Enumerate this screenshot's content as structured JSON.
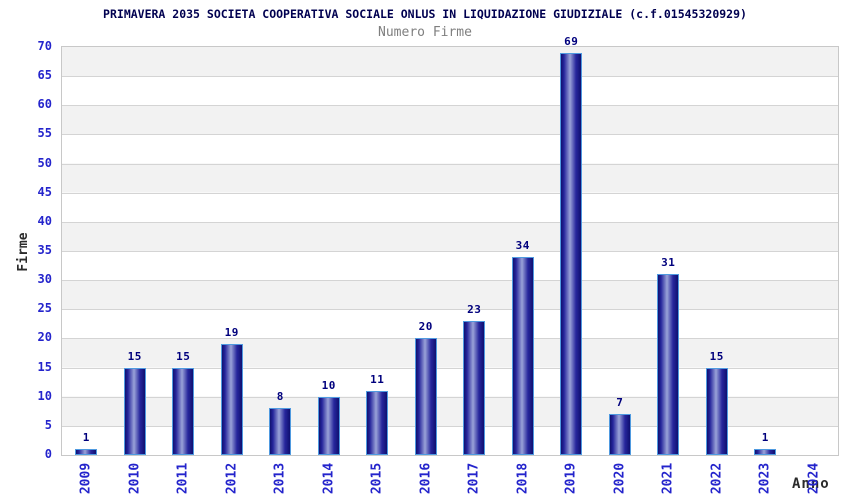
{
  "header": {
    "title": "PRIMAVERA 2035 SOCIETA COOPERATIVA SOCIALE ONLUS IN LIQUIDAZIONE GIUDIZIALE (c.f.01545320929)",
    "subtitle": "Numero Firme"
  },
  "chart_data": {
    "type": "bar",
    "title": "PRIMAVERA 2035 SOCIETA COOPERATIVA SOCIALE ONLUS IN LIQUIDAZIONE GIUDIZIALE (c.f.01545320929)",
    "subtitle": "Numero Firme",
    "categories": [
      "2009",
      "2010",
      "2011",
      "2012",
      "2013",
      "2014",
      "2015",
      "2016",
      "2017",
      "2018",
      "2019",
      "2020",
      "2021",
      "2022",
      "2023",
      "2024"
    ],
    "values": [
      1,
      15,
      15,
      19,
      8,
      10,
      11,
      20,
      23,
      34,
      69,
      7,
      31,
      15,
      1,
      0
    ],
    "xlabel": "Anno",
    "ylabel": "Firme",
    "ylim": [
      0,
      70
    ],
    "ytick_step": 5,
    "yticks": [
      0,
      5,
      10,
      15,
      20,
      25,
      30,
      35,
      40,
      45,
      50,
      55,
      60,
      65,
      70
    ],
    "grid": true,
    "bands": true,
    "legend_position": "none",
    "bar_value_labels": true
  },
  "colors": {
    "title_text": "#000050",
    "subtitle_text": "#7f7f7f",
    "axis_tick_text": "#2424cc",
    "value_label_text": "#00007d",
    "axis_title_text": "#2b2b2b",
    "band_gray": "#f2f2f2",
    "band_white": "#ffffff",
    "gridline": "#d4d4d4",
    "plot_border": "#c8c8c8",
    "bar_dark": "#101070",
    "bar_mid": "#26269c",
    "bar_highlight": "#9aa2d8",
    "bar_outline": "#4f9ae0"
  }
}
